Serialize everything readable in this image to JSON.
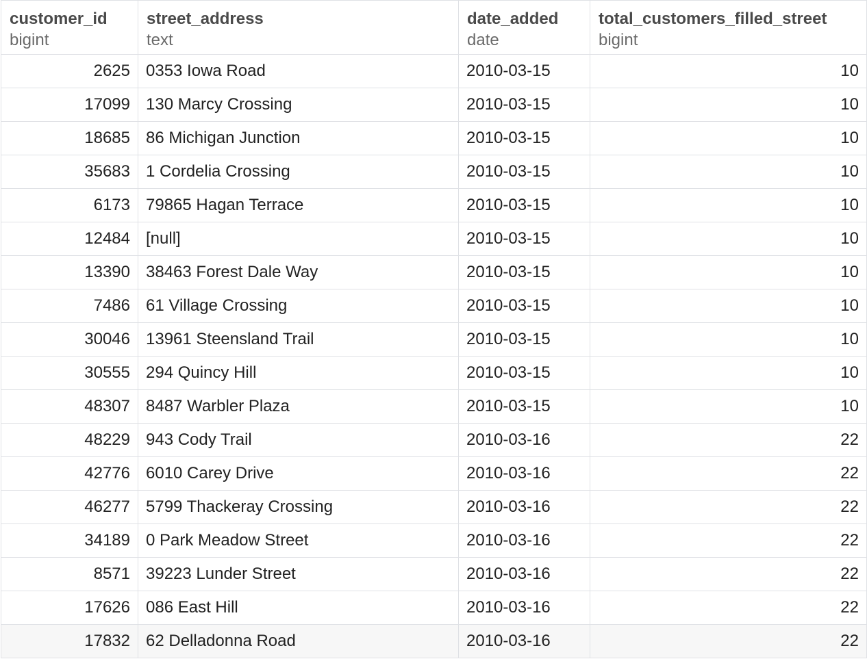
{
  "columns": [
    {
      "name": "customer_id",
      "type": "bigint"
    },
    {
      "name": "street_address",
      "type": "text"
    },
    {
      "name": "date_added",
      "type": "date"
    },
    {
      "name": "total_customers_filled_street",
      "type": "bigint"
    }
  ],
  "rows": [
    {
      "customer_id": "2625",
      "street_address": "0353 Iowa Road",
      "date_added": "2010-03-15",
      "total": "10"
    },
    {
      "customer_id": "17099",
      "street_address": "130 Marcy Crossing",
      "date_added": "2010-03-15",
      "total": "10"
    },
    {
      "customer_id": "18685",
      "street_address": "86 Michigan Junction",
      "date_added": "2010-03-15",
      "total": "10"
    },
    {
      "customer_id": "35683",
      "street_address": "1 Cordelia Crossing",
      "date_added": "2010-03-15",
      "total": "10"
    },
    {
      "customer_id": "6173",
      "street_address": "79865 Hagan Terrace",
      "date_added": "2010-03-15",
      "total": "10"
    },
    {
      "customer_id": "12484",
      "street_address": "[null]",
      "date_added": "2010-03-15",
      "total": "10"
    },
    {
      "customer_id": "13390",
      "street_address": "38463 Forest Dale Way",
      "date_added": "2010-03-15",
      "total": "10"
    },
    {
      "customer_id": "7486",
      "street_address": "61 Village Crossing",
      "date_added": "2010-03-15",
      "total": "10"
    },
    {
      "customer_id": "30046",
      "street_address": "13961 Steensland Trail",
      "date_added": "2010-03-15",
      "total": "10"
    },
    {
      "customer_id": "30555",
      "street_address": "294 Quincy Hill",
      "date_added": "2010-03-15",
      "total": "10"
    },
    {
      "customer_id": "48307",
      "street_address": "8487 Warbler Plaza",
      "date_added": "2010-03-15",
      "total": "10"
    },
    {
      "customer_id": "48229",
      "street_address": "943 Cody Trail",
      "date_added": "2010-03-16",
      "total": "22"
    },
    {
      "customer_id": "42776",
      "street_address": "6010 Carey Drive",
      "date_added": "2010-03-16",
      "total": "22"
    },
    {
      "customer_id": "46277",
      "street_address": "5799 Thackeray Crossing",
      "date_added": "2010-03-16",
      "total": "22"
    },
    {
      "customer_id": "34189",
      "street_address": "0 Park Meadow Street",
      "date_added": "2010-03-16",
      "total": "22"
    },
    {
      "customer_id": "8571",
      "street_address": "39223 Lunder Street",
      "date_added": "2010-03-16",
      "total": "22"
    },
    {
      "customer_id": "17626",
      "street_address": "086 East Hill",
      "date_added": "2010-03-16",
      "total": "22"
    },
    {
      "customer_id": "17832",
      "street_address": "62 Delladonna Road",
      "date_added": "2010-03-16",
      "total": "22"
    }
  ]
}
